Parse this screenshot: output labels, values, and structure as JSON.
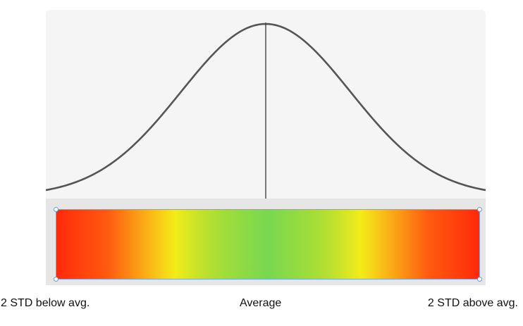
{
  "diagram": {
    "labels": {
      "below": "2 STD below avg.",
      "average": "Average",
      "above": "2 STD above avg."
    },
    "curve": {
      "shape": "normal-distribution",
      "mean": 0,
      "std": 1,
      "x_range": [
        -2.6,
        2.6
      ],
      "stroke": "#555555"
    },
    "mean_line": {
      "color": "#444444"
    },
    "gradient": {
      "stops": [
        {
          "pos": 0.0,
          "color": "#ff2a0a"
        },
        {
          "pos": 0.28,
          "color": "#f3ec18"
        },
        {
          "pos": 0.5,
          "color": "#78d850"
        },
        {
          "pos": 0.72,
          "color": "#f3ec18"
        },
        {
          "pos": 1.0,
          "color": "#ff2a0a"
        }
      ],
      "border_color": "#7aa7e0"
    },
    "panel_colors": {
      "curve_bg": "#f5f5f5",
      "bar_bg": "#e6e6e6"
    }
  }
}
